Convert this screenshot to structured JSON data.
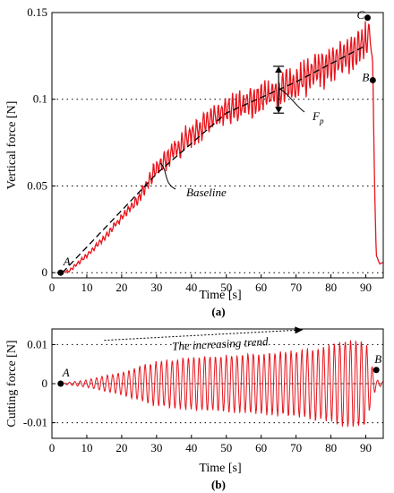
{
  "chart_data": [
    {
      "type": "line",
      "caption": "(a)",
      "xlabel": "Time [s]",
      "ylabel": "Vertical force [N]",
      "xlim": [
        0,
        95
      ],
      "ylim": [
        -0.003,
        0.15
      ],
      "xticks": [
        "0",
        "10",
        "20",
        "30",
        "40",
        "50",
        "60",
        "70",
        "80",
        "90"
      ],
      "yticks": [
        "0",
        "0.05",
        "0.1",
        "0.15"
      ],
      "grid": "horizontal dotted",
      "series": [
        {
          "color": "#e8141c",
          "x": [
            2.5,
            5,
            10,
            15,
            20,
            25,
            30,
            35,
            40,
            45,
            50,
            55,
            60,
            65,
            70,
            75,
            80,
            85,
            90,
            91,
            92,
            92.5,
            93,
            94,
            95
          ],
          "y": [
            0.0,
            0.001,
            0.01,
            0.02,
            0.032,
            0.043,
            0.06,
            0.07,
            0.08,
            0.087,
            0.093,
            0.097,
            0.1,
            0.105,
            0.11,
            0.115,
            0.12,
            0.127,
            0.132,
            0.14,
            0.12,
            0.05,
            0.01,
            0.005,
            0.006
          ],
          "noise_amplitude": [
            0.0,
            0.001,
            0.0015,
            0.002,
            0.002,
            0.003,
            0.006,
            0.007,
            0.008,
            0.008,
            0.009,
            0.009,
            0.01,
            0.01,
            0.011,
            0.011,
            0.012,
            0.012,
            0.012,
            0.004,
            0.0,
            0.0,
            0.0,
            0.0,
            0.0
          ]
        },
        {
          "style": "dashed",
          "color": "#000000",
          "x": [
            3,
            30,
            50,
            70,
            90
          ],
          "y": [
            0.0,
            0.057,
            0.092,
            0.11,
            0.131
          ]
        }
      ],
      "points": [
        {
          "label": "A",
          "x": 2.5,
          "y": 0.0
        },
        {
          "label": "C",
          "x": 90.5,
          "y": 0.147
        },
        {
          "label": "B",
          "x": 92,
          "y": 0.111
        }
      ],
      "annotations": [
        {
          "text": "F",
          "subscript": "p",
          "x": 65,
          "y_top": 0.119,
          "y_bottom": 0.092
        },
        {
          "text": "Baseline",
          "x": 30,
          "y": 0.057
        }
      ]
    },
    {
      "type": "line",
      "caption": "(b)",
      "xlabel": "Time [s]",
      "ylabel": "Cutting force [N]",
      "xlim": [
        0,
        95
      ],
      "ylim": [
        -0.014,
        0.014
      ],
      "xticks": [
        "0",
        "10",
        "20",
        "30",
        "40",
        "50",
        "60",
        "70",
        "80",
        "90"
      ],
      "yticks": [
        "-0.01",
        "0",
        "0.01"
      ],
      "grid": "horizontal dotted",
      "series": [
        {
          "color": "#e8141c",
          "style": "oscillating",
          "x": [
            2,
            10,
            20,
            30,
            40,
            50,
            60,
            70,
            80,
            85,
            90,
            92,
            93,
            95
          ],
          "amplitude": [
            0.0,
            0.001,
            0.003,
            0.006,
            0.007,
            0.0075,
            0.008,
            0.009,
            0.01,
            0.012,
            0.011,
            0.004,
            0.001,
            0.0005
          ]
        }
      ],
      "points": [
        {
          "label": "A",
          "x": 2.5,
          "y": 0.0
        },
        {
          "label": "B",
          "x": 93,
          "y": 0.0035
        }
      ],
      "annotations": [
        {
          "text": "The increasing trend",
          "x_start": 15,
          "x_end": 72,
          "y_start": 0.0111,
          "y_end": 0.0138
        }
      ]
    }
  ]
}
